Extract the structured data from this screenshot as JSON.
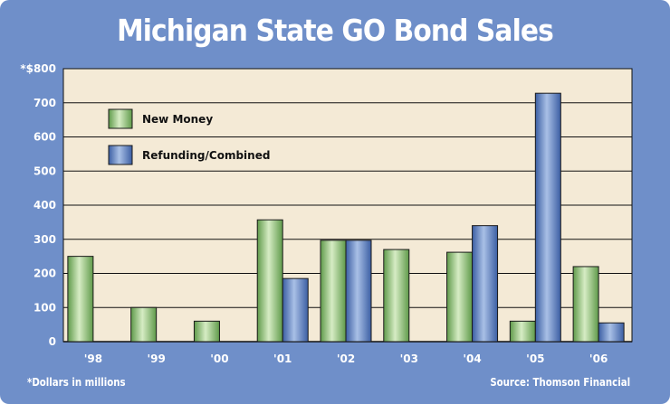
{
  "colors": {
    "background": "#6f8fc9",
    "plot_background": "#f4ead6",
    "new_money_light": "#d6ecc4",
    "new_money_dark": "#5f9a4a",
    "refunding_light": "#a9c0e6",
    "refunding_dark": "#3b5ea3",
    "gridline": "#111111",
    "text_light": "#ffffff",
    "text_dark": "#111111"
  },
  "chart_data": {
    "type": "bar",
    "title": "Michigan State GO Bond Sales",
    "categories": [
      "'98",
      "'99",
      "'00",
      "'01",
      "'02",
      "'03",
      "'04",
      "'05",
      "'06"
    ],
    "series": [
      {
        "name": "New Money",
        "values": [
          250,
          100,
          60,
          357,
          297,
          270,
          262,
          60,
          220
        ]
      },
      {
        "name": "Refunding/Combined",
        "values": [
          0,
          0,
          0,
          185,
          297,
          0,
          340,
          728,
          55
        ]
      }
    ],
    "y_tick_labels": [
      "0",
      "100",
      "200",
      "300",
      "400",
      "500",
      "600",
      "700",
      "*$800"
    ],
    "y_ticks": [
      0,
      100,
      200,
      300,
      400,
      500,
      600,
      700,
      800
    ],
    "ylim": [
      0,
      800
    ],
    "grid": true,
    "legend_position": "top-left",
    "xlabel": "",
    "ylabel": "",
    "footnote": "*Dollars in millions",
    "source": "Source: Thomson Financial"
  }
}
